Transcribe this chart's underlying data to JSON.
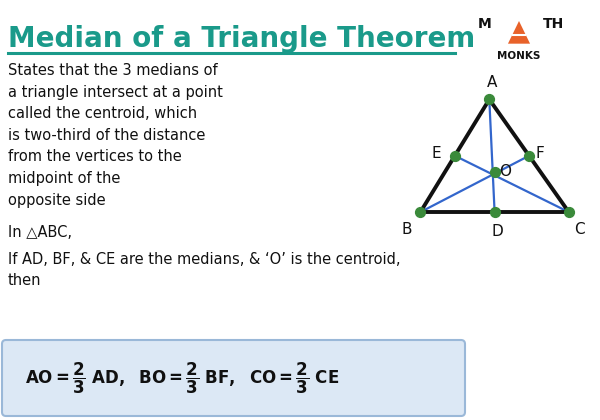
{
  "title": "Median of a Triangle Theorem",
  "title_color": "#1a9a8a",
  "title_fontsize": 20,
  "bg_color": "#ffffff",
  "teal_color": "#1a9a8a",
  "body_text": "States that the 3 medians of\na triangle intersect at a point\ncalled the centroid, which\nis two-third of the distance\nfrom the vertices to the\nmidpoint of the\nopposite side",
  "in_abc": "In △ABC,",
  "if_text": "If AD, BF, & CE are the medians, & ‘O’ is the centroid,\nthen",
  "formula_box_color": "#dce8f5",
  "formula_box_edge": "#9ab8d8",
  "triangle_vertices": {
    "A": [
      0.62,
      0.88
    ],
    "B": [
      0.36,
      0.42
    ],
    "C": [
      0.92,
      0.42
    ]
  },
  "midpoints": {
    "D": [
      0.64,
      0.42
    ],
    "E": [
      0.49,
      0.65
    ],
    "F": [
      0.77,
      0.65
    ]
  },
  "centroid": [
    0.64,
    0.585
  ],
  "triangle_color": "#111111",
  "median_color": "#3366cc",
  "vertex_dot_color": "#3a8a3a",
  "dot_size": 50,
  "label_fontsize": 11,
  "logo_triangle_color": "#e8622a"
}
